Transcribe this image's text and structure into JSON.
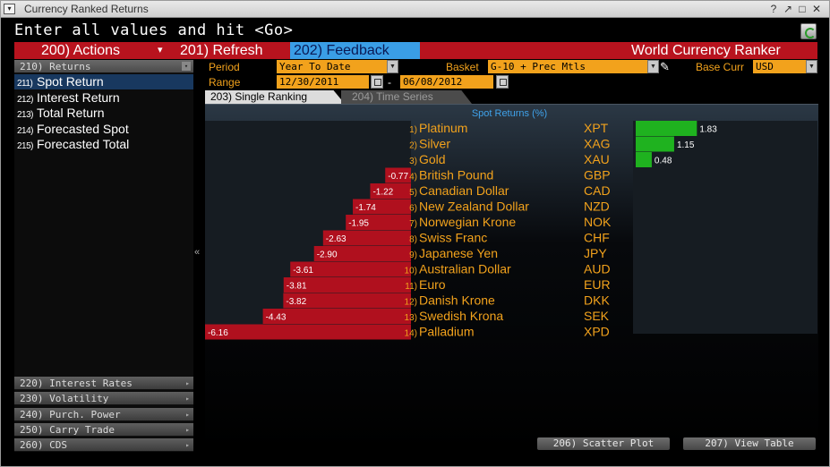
{
  "window": {
    "title": "Currency Ranked Returns",
    "controls": [
      "?",
      "↗",
      "□",
      "✕"
    ]
  },
  "command_prompt": "Enter all values and hit <Go>",
  "toolbar": {
    "actions_label": "200) Actions",
    "actions_arrow": "▾",
    "refresh_label": "201) Refresh",
    "feedback_label": "202)   Feedback",
    "app_title": "World Currency Ranker"
  },
  "sidebar": {
    "returns_header": {
      "label": "210)  Returns",
      "arrow": "▾"
    },
    "items": [
      {
        "num": "211)",
        "label": "Spot Return",
        "selected": true
      },
      {
        "num": "212)",
        "label": "Interest Return",
        "selected": false
      },
      {
        "num": "213)",
        "label": "Total Return",
        "selected": false
      },
      {
        "num": "214)",
        "label": "Forecasted Spot",
        "selected": false
      },
      {
        "num": "215)",
        "label": "Forecasted Total",
        "selected": false
      }
    ],
    "sections": [
      {
        "label": "220)  Interest Rates",
        "arrow": "▸"
      },
      {
        "label": "230)   Volatility",
        "arrow": "▸"
      },
      {
        "label": "240)  Purch. Power",
        "arrow": "▸"
      },
      {
        "label": "250)  Carry Trade",
        "arrow": "▸"
      },
      {
        "label": "260)  CDS",
        "arrow": "▸"
      }
    ]
  },
  "params": {
    "period_label": "Period",
    "period_value": "Year To Date",
    "basket_label": "Basket",
    "basket_value": "G-10 + Prec Mtls",
    "base_curr_label": "Base Curr",
    "base_curr_value": "USD",
    "range_label": "Range",
    "range_start": "12/30/2011",
    "range_sep": "-",
    "range_end": "06/08/2012"
  },
  "tabs": {
    "single": "203) Single Ranking",
    "series": "204) Time Series"
  },
  "buttons": {
    "scatter": "206)  Scatter Plot",
    "table": "207)  View Table"
  },
  "colors": {
    "positive": "#1fb21f",
    "negative": "#b0101e",
    "accent": "#f2a21c",
    "selected": "#18385f"
  },
  "chart_data": {
    "type": "bar",
    "title": "Spot Returns  (%)",
    "categories": [
      "Platinum",
      "Silver",
      "Gold",
      "British Pound",
      "Canadian Dollar",
      "New Zealand Dollar",
      "Norwegian Krone",
      "Swiss Franc",
      "Japanese Yen",
      "Australian Dollar",
      "Euro",
      "Danish Krone",
      "Swedish Krona",
      "Palladium"
    ],
    "ranks": [
      "1)",
      "2)",
      "3)",
      "4)",
      "5)",
      "6)",
      "7)",
      "8)",
      "9)",
      "10)",
      "11)",
      "12)",
      "13)",
      "14)"
    ],
    "codes": [
      "XPT",
      "XAG",
      "XAU",
      "GBP",
      "CAD",
      "NZD",
      "NOK",
      "CHF",
      "JPY",
      "AUD",
      "EUR",
      "DKK",
      "SEK",
      "XPD"
    ],
    "values": [
      1.83,
      1.15,
      0.48,
      -0.77,
      -1.22,
      -1.74,
      -1.95,
      -2.63,
      -2.9,
      -3.61,
      -3.81,
      -3.82,
      -4.43,
      -6.16
    ],
    "value_labels": [
      "1.83",
      "1.15",
      "0.48",
      "-0.77",
      "-1.22",
      "-1.74",
      "-1.95",
      "-2.63",
      "-2.90",
      "-3.61",
      "-3.81",
      "-3.82",
      "-4.43",
      "-6.16"
    ]
  }
}
